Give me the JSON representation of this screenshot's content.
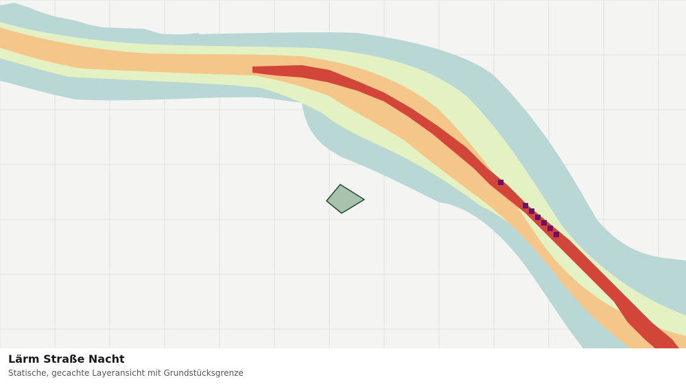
{
  "map": {
    "layer": "noise-road-night",
    "colors": {
      "background": "#f4f5f2",
      "grid": "#dfe1dc",
      "band_outer": "#b9d7d4",
      "band_light": "#e4f2c3",
      "band_mid": "#f4c68a",
      "band_core": "#d2463a",
      "band_peak": "#6d1263",
      "parcel_fill": "#a9c2ad",
      "parcel_stroke": "#1f4a30"
    }
  },
  "caption": {
    "title": "Lärm Straße Nacht",
    "subtitle": "Statische, gecachte Layeransicht mit Grundstücksgrenze"
  }
}
